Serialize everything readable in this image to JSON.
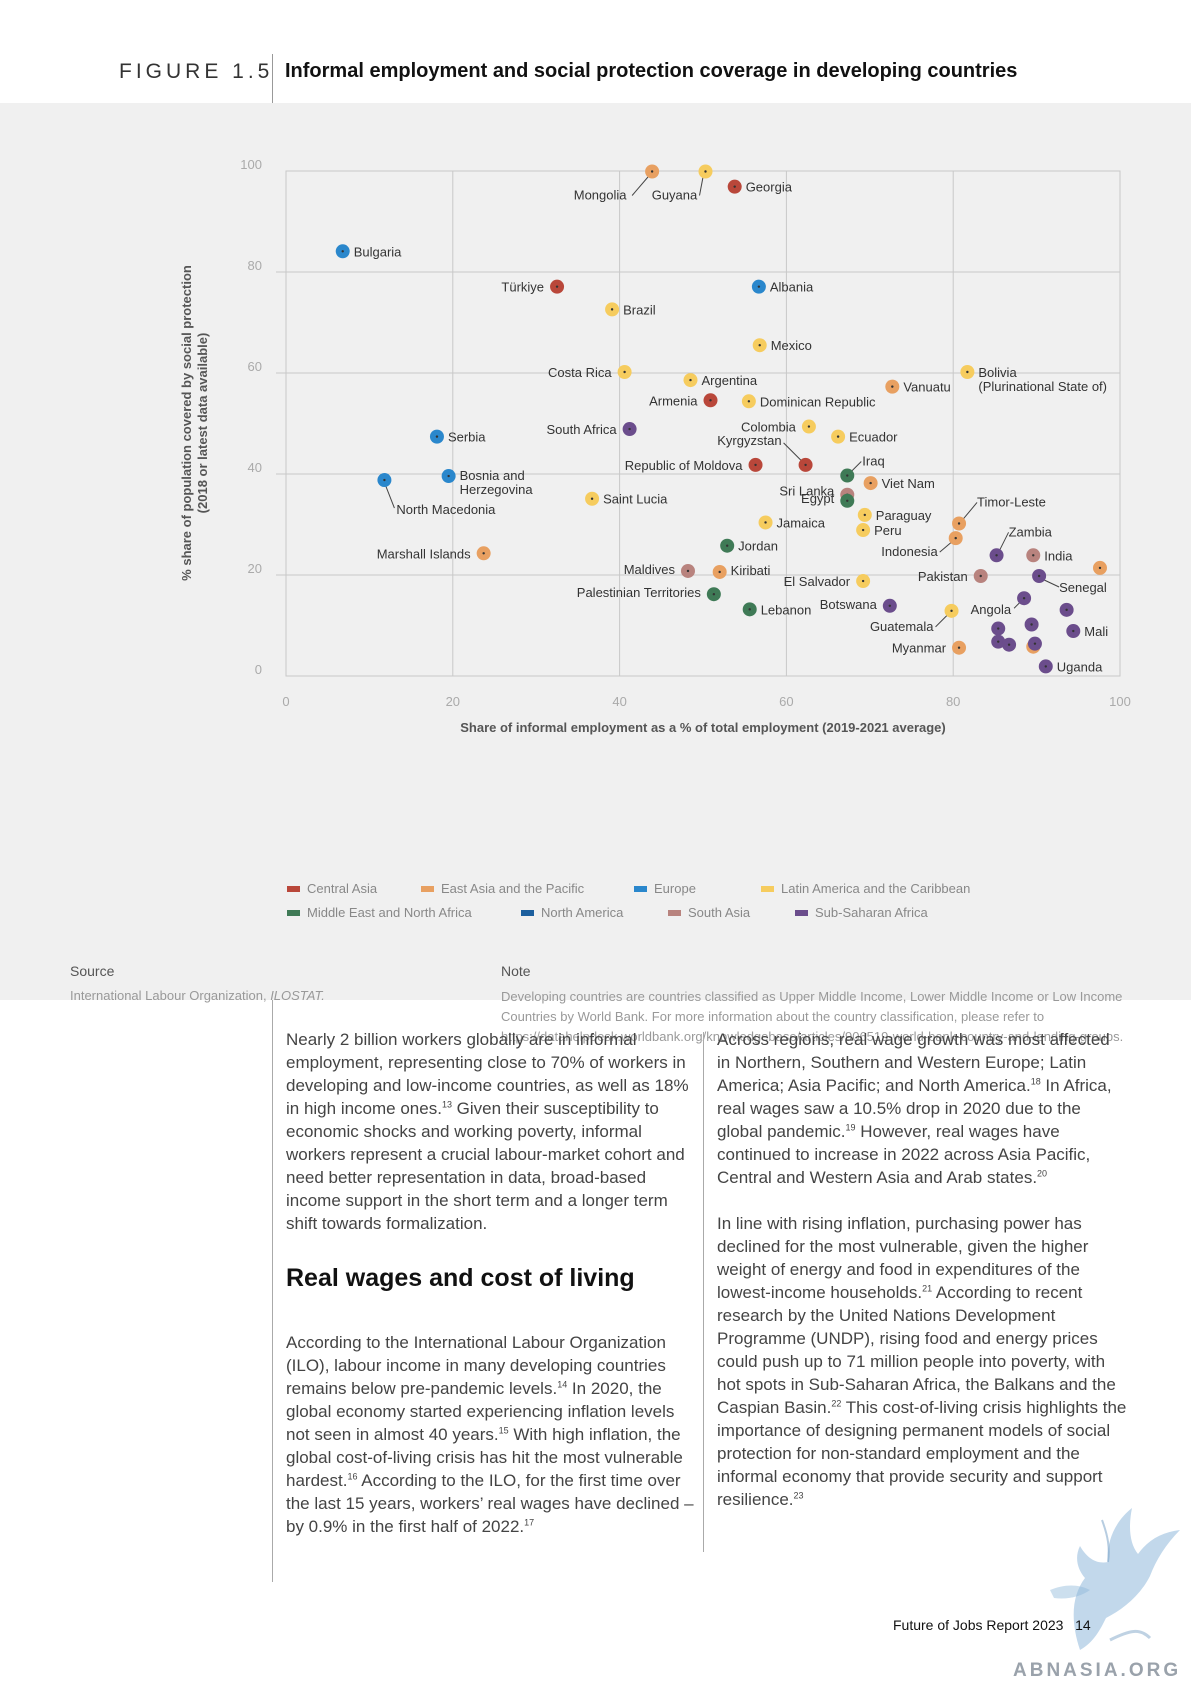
{
  "figure": {
    "label": "FIGURE 1.5",
    "title": "Informal employment and social protection coverage in developing countries"
  },
  "chart_data": {
    "type": "scatter",
    "xlabel": "Share of informal employment as a % of total employment (2019-2021 average)",
    "ylabel_line1": "% share of population covered by social protection",
    "ylabel_line2": "(2018 or latest data available)",
    "xlim": [
      0,
      100
    ],
    "ylim": [
      0,
      100
    ],
    "x_ticks": [
      0,
      20,
      40,
      60,
      80,
      100
    ],
    "y_ticks": [
      0,
      20,
      40,
      60,
      80,
      100
    ],
    "grid": true,
    "legend_position": "bottom",
    "regions": [
      {
        "name": "Central Asia",
        "color": "#b9473a"
      },
      {
        "name": "East Asia and the Pacific",
        "color": "#e8a061"
      },
      {
        "name": "Europe",
        "color": "#2a87cc"
      },
      {
        "name": "Latin America and the Caribbean",
        "color": "#f6cc5e"
      },
      {
        "name": "Middle East and North Africa",
        "color": "#3f7a56"
      },
      {
        "name": "North America",
        "color": "#1c5f9e"
      },
      {
        "name": "South Asia",
        "color": "#b8837e"
      },
      {
        "name": "Sub-Saharan Africa",
        "color": "#6b4d8c"
      }
    ],
    "points": [
      {
        "label": "Mongolia",
        "region": 1,
        "x": 43.9,
        "y": 99.9
      },
      {
        "label": "Guyana",
        "region": 3,
        "x": 50.3,
        "y": 99.9
      },
      {
        "label": "Georgia",
        "region": 0,
        "x": 53.8,
        "y": 96.9
      },
      {
        "label": "Bulgaria",
        "region": 2,
        "x": 6.8,
        "y": 84.1
      },
      {
        "label": "Türkiye",
        "region": 0,
        "x": 32.5,
        "y": 77.1
      },
      {
        "label": "Albania",
        "region": 2,
        "x": 56.7,
        "y": 77.1
      },
      {
        "label": "Brazil",
        "region": 3,
        "x": 39.1,
        "y": 72.6
      },
      {
        "label": "Mexico",
        "region": 3,
        "x": 56.8,
        "y": 65.5
      },
      {
        "label": "Costa Rica",
        "region": 3,
        "x": 40.6,
        "y": 60.2
      },
      {
        "label": "Bolivia (Plurinational State of)",
        "region": 3,
        "x": 81.7,
        "y": 60.2
      },
      {
        "label": "Argentina",
        "region": 3,
        "x": 48.5,
        "y": 58.6
      },
      {
        "label": "Vanuatu",
        "region": 1,
        "x": 72.7,
        "y": 57.3
      },
      {
        "label": "Armenia",
        "region": 0,
        "x": 50.9,
        "y": 54.6
      },
      {
        "label": "Dominican Republic",
        "region": 3,
        "x": 55.5,
        "y": 54.4
      },
      {
        "label": "Colombia",
        "region": 3,
        "x": 62.7,
        "y": 49.4
      },
      {
        "label": "South Africa",
        "region": 7,
        "x": 41.2,
        "y": 48.9
      },
      {
        "label": "Serbia",
        "region": 2,
        "x": 18.1,
        "y": 47.4
      },
      {
        "label": "Ecuador",
        "region": 3,
        "x": 66.2,
        "y": 47.4
      },
      {
        "label": "Kyrgyzstan",
        "region": 0,
        "x": 62.3,
        "y": 41.8
      },
      {
        "label": "Republic of Moldova",
        "region": 0,
        "x": 56.3,
        "y": 41.8
      },
      {
        "label": "Iraq",
        "region": 4,
        "x": 67.3,
        "y": 39.7
      },
      {
        "label": "Bosnia and Herzegovina",
        "region": 2,
        "x": 19.5,
        "y": 39.6
      },
      {
        "label": "North Macedonia",
        "region": 2,
        "x": 11.8,
        "y": 38.8
      },
      {
        "label": "Viet Nam",
        "region": 1,
        "x": 70.1,
        "y": 38.2
      },
      {
        "label": "Sri Lanka",
        "region": 6,
        "x": 67.3,
        "y": 35.9
      },
      {
        "label": "Egypt",
        "region": 4,
        "x": 67.3,
        "y": 34.7
      },
      {
        "label": "Saint Lucia",
        "region": 3,
        "x": 36.7,
        "y": 35.1
      },
      {
        "label": "Paraguay",
        "region": 3,
        "x": 69.4,
        "y": 31.9
      },
      {
        "label": "Timor-Leste",
        "region": 1,
        "x": 80.7,
        "y": 30.2
      },
      {
        "label": "Jamaica",
        "region": 3,
        "x": 57.5,
        "y": 30.4
      },
      {
        "label": "Peru",
        "region": 3,
        "x": 69.2,
        "y": 28.9
      },
      {
        "label": "Indonesia",
        "region": 1,
        "x": 80.3,
        "y": 27.3
      },
      {
        "label": "Jordan",
        "region": 4,
        "x": 52.9,
        "y": 25.8
      },
      {
        "label": "Zambia",
        "region": 7,
        "x": 85.2,
        "y": 23.9
      },
      {
        "label": "India",
        "region": 6,
        "x": 89.6,
        "y": 23.9
      },
      {
        "label": "Marshall Islands",
        "region": 1,
        "x": 23.7,
        "y": 24.3
      },
      {
        "label": "Maldives",
        "region": 6,
        "x": 48.2,
        "y": 20.8
      },
      {
        "label": "Kiribati",
        "region": 1,
        "x": 52.0,
        "y": 20.6
      },
      {
        "label": "Pakistan",
        "region": 6,
        "x": 83.3,
        "y": 19.8
      },
      {
        "label": "Senegal",
        "region": 7,
        "x": 90.3,
        "y": 19.8
      },
      {
        "label": "El Salvador",
        "region": 3,
        "x": 69.2,
        "y": 18.8
      },
      {
        "label": "Palestinian Territories",
        "region": 4,
        "x": 51.3,
        "y": 16.2
      },
      {
        "label": "Botswana",
        "region": 7,
        "x": 72.4,
        "y": 13.9
      },
      {
        "label": "Lebanon",
        "region": 4,
        "x": 55.6,
        "y": 13.2
      },
      {
        "label": "Guatemala",
        "region": 3,
        "x": 79.8,
        "y": 12.9
      },
      {
        "label": "Angola",
        "region": 7,
        "x": 88.5,
        "y": 15.4
      },
      {
        "label": "Mali",
        "region": 7,
        "x": 94.4,
        "y": 8.9
      },
      {
        "label": "Myanmar",
        "region": 1,
        "x": 80.7,
        "y": 5.6
      },
      {
        "label": "Uganda",
        "region": 7,
        "x": 91.1,
        "y": 1.9
      },
      {
        "label": "",
        "region": 1,
        "x": 97.6,
        "y": 21.4
      },
      {
        "label": "",
        "region": 7,
        "x": 93.6,
        "y": 13.1
      },
      {
        "label": "",
        "region": 7,
        "x": 89.4,
        "y": 10.2
      },
      {
        "label": "",
        "region": 7,
        "x": 85.4,
        "y": 9.4
      },
      {
        "label": "",
        "region": 7,
        "x": 85.4,
        "y": 6.8
      },
      {
        "label": "",
        "region": 7,
        "x": 86.7,
        "y": 6.2
      },
      {
        "label": "",
        "region": 1,
        "x": 89.6,
        "y": 5.8
      },
      {
        "label": "",
        "region": 7,
        "x": 89.8,
        "y": 6.4
      }
    ]
  },
  "source": {
    "heading": "Source",
    "text_plain": "International Labour Organization, ",
    "text_italic": "ILOSTAT."
  },
  "note": {
    "heading": "Note",
    "text": "Developing countries are countries classified as Upper Middle Income, Lower Middle Income or Low Income Countries by World Bank. For more information about the country classification, please refer to https://datahelpdesk.worldbank.org/knowledgebase/articles/906519-world-bank-country-and-lending-groups."
  },
  "body": {
    "left": {
      "p1": {
        "a": "Nearly 2 billion workers globally are in informal employment, representing close to 70% of workers in developing and low-income countries, as well as 18% in high income ones.",
        "fn13": "13",
        "b": " Given their susceptibility to economic shocks and working poverty, informal workers represent a crucial labour-market cohort and need better representation in data, broad-based income support in the short term and a longer term shift towards formalization."
      },
      "heading": "Real wages and cost of living",
      "p2": {
        "a": "According to the International Labour Organization (ILO), labour income in many developing countries remains below pre-pandemic levels.",
        "fn14": "14",
        "b": " In 2020, the global economy started experiencing inflation levels not seen in almost 40 years.",
        "fn15": "15",
        "c": " With high inflation, the global cost-of-living crisis has hit the most vulnerable hardest.",
        "fn16": "16",
        "d": " According to the ILO, for the first time over the last 15 years, workers’ real wages have declined – by 0.9% in the first half of 2022.",
        "fn17": "17"
      }
    },
    "right": {
      "p1": {
        "a": "Across regions, real wage growth was most affected in Northern, Southern and Western Europe; Latin America; Asia Pacific; and North America.",
        "fn18": "18",
        "b": " In Africa, real wages saw a 10.5% drop in 2020 due to the global pandemic.",
        "fn19": "19",
        "c": " However, real wages have continued to increase in 2022 across Asia Pacific, Central and Western Asia and Arab states.",
        "fn20": "20"
      },
      "p2": {
        "a": "In line with rising inflation, purchasing power has declined for the most vulnerable, given the higher weight of energy and food in expenditures of the lowest-income households.",
        "fn21": "21",
        "b": " According to recent research by the United Nations Development Programme (UNDP), rising food and energy prices could push up to 71 million people into poverty, with hot spots in Sub-Saharan Africa, the Balkans and the Caspian Basin.",
        "fn22": "22",
        "c": " This cost-of-living crisis highlights the importance of designing permanent models of social protection for non-standard employment and the informal economy that provide security and support resilience.",
        "fn23": "23"
      }
    }
  },
  "footer": {
    "report": "Future of Jobs Report 2023",
    "page": "14"
  },
  "watermark": {
    "text": "ABNASIA.ORG",
    "color": "#9aa2ab"
  }
}
